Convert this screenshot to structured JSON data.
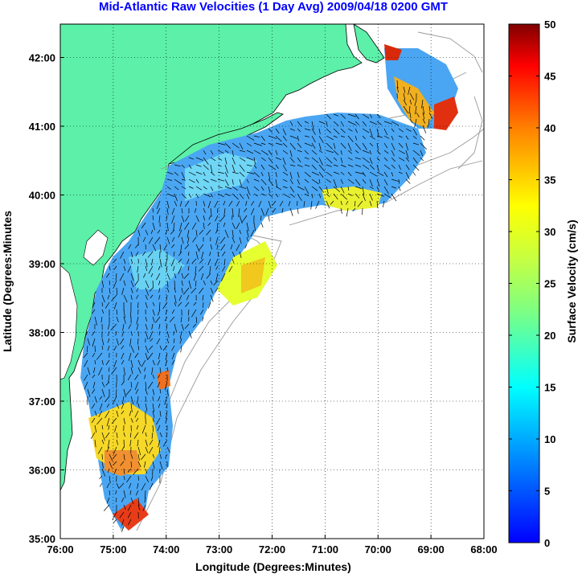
{
  "title": "Mid-Atlantic Raw Velocities (1 Day Avg) 2009/04/18 0200 GMT",
  "xlabel": "Longitude (Degrees:Minutes)",
  "ylabel": "Latitude (Degrees:Minutes",
  "x_ticks": [
    "76:00",
    "75:00",
    "74:00",
    "73:00",
    "72:00",
    "71:00",
    "70:00",
    "69:00",
    "68:00"
  ],
  "y_ticks": [
    "35:00",
    "36:00",
    "37:00",
    "38:00",
    "39:00",
    "40:00",
    "41:00",
    "42:00"
  ],
  "colorbar": {
    "label": "Surface Velocity (cm/s)",
    "ticks": [
      "0",
      "5",
      "10",
      "15",
      "20",
      "25",
      "30",
      "35",
      "40",
      "45",
      "50"
    ],
    "colormap": "jet"
  },
  "colors": {
    "land": "#5cf0a8",
    "title": "#0000ff",
    "bathymetry": "#999999",
    "arrows": "#000000"
  }
}
